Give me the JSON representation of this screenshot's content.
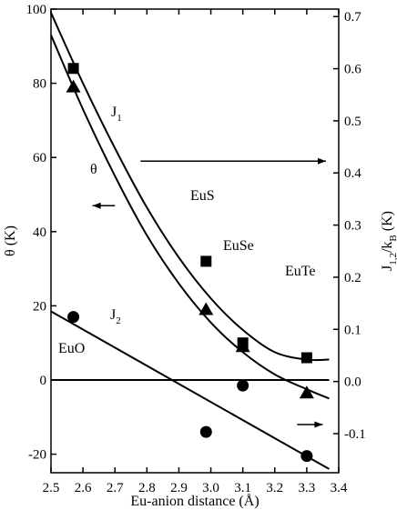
{
  "chart_data": {
    "type": "scatter",
    "xlabel": "Eu-anion distance (Å)",
    "ylabel_left": "θ (K)",
    "ylabel_right_main": "J",
    "ylabel_right_sub": "1,2",
    "ylabel_right_tail": "/k",
    "ylabel_right_sub2": "B",
    "ylabel_right_end": " (K)",
    "xlim": [
      2.5,
      3.4
    ],
    "ylim_left": [
      -25,
      100
    ],
    "ylim_right": [
      -0.175,
      0.7143
    ],
    "x_ticks": [
      2.5,
      2.6,
      2.7,
      2.8,
      2.9,
      3.0,
      3.1,
      3.2,
      3.3,
      3.4
    ],
    "x_tick_labels": [
      "2.5",
      "2.6",
      "2.7",
      "2.8",
      "2.9",
      "3.0",
      "3.1",
      "3.2",
      "3.3",
      "3.4"
    ],
    "y_left_ticks": [
      -20,
      0,
      20,
      40,
      60,
      80,
      100
    ],
    "y_left_tick_labels": [
      "-20",
      "0",
      "20",
      "40",
      "60",
      "80",
      "100"
    ],
    "y_right_ticks": [
      -0.1,
      0.0,
      0.1,
      0.2,
      0.3,
      0.4,
      0.5,
      0.6,
      0.7
    ],
    "y_right_tick_labels": [
      "-0.1",
      "0.0",
      "0.1",
      "0.2",
      "0.3",
      "0.4",
      "0.5",
      "0.6",
      "0.7"
    ],
    "series": [
      {
        "marker": "square",
        "x": [
          2.57,
          2.985,
          3.1,
          3.3
        ],
        "y": [
          84,
          32,
          10,
          6
        ]
      },
      {
        "marker": "triangle",
        "x": [
          2.57,
          2.985,
          3.1,
          3.3
        ],
        "y": [
          79,
          19,
          9,
          -3.5
        ]
      },
      {
        "marker": "circle",
        "x": [
          2.57,
          2.985,
          3.1,
          3.3
        ],
        "y": [
          17,
          -14,
          -1.5,
          -20.5
        ]
      }
    ],
    "curves": [
      {
        "x": [
          2.5,
          2.6,
          2.7,
          2.8,
          2.9,
          3.0,
          3.1,
          3.2,
          3.3,
          3.37
        ],
        "y": [
          99,
          80,
          62.5,
          46.5,
          33,
          22,
          13.5,
          7.5,
          5.5,
          5.5
        ]
      },
      {
        "x": [
          2.5,
          2.6,
          2.7,
          2.8,
          2.9,
          3.0,
          3.1,
          3.2,
          3.3,
          3.37
        ],
        "y": [
          93,
          73,
          55,
          39,
          26,
          15.5,
          7.5,
          1.5,
          -2.5,
          -5
        ]
      },
      {
        "x": [
          2.5,
          3.37
        ],
        "y": [
          18.5,
          -24
        ]
      },
      {
        "x": [
          2.5,
          3.37
        ],
        "y": [
          0,
          0
        ]
      }
    ],
    "annotations": {
      "j1": "J",
      "j1_sub": "1",
      "j2": "J",
      "j2_sub": "2",
      "theta": "θ",
      "eus": "EuS",
      "euse": "EuSe",
      "eute": "EuTe",
      "euo": "EuO"
    },
    "arrows": [
      {
        "direction": "left",
        "x": [
          2.63,
          2.7
        ],
        "y": 47
      },
      {
        "direction": "right",
        "x": [
          2.78,
          3.36
        ],
        "y": 59
      },
      {
        "direction": "right",
        "x": [
          3.27,
          3.35
        ],
        "y": -12
      }
    ]
  }
}
